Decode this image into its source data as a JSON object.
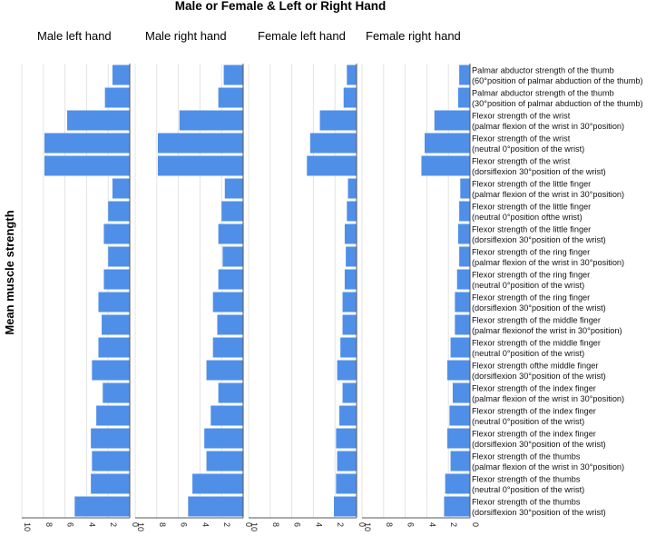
{
  "chart_data": {
    "type": "bar",
    "orientation": "horizontal",
    "title": "Male or Female & Left or Right Hand",
    "ylabel": "Mean muscle strength",
    "xlim": [
      0,
      10
    ],
    "x_ticks": [
      10,
      8,
      6,
      4,
      2,
      0
    ],
    "x_reversed": true,
    "grid": true,
    "bar_color": "#4f8fe8",
    "categories": [
      [
        "Palmar abductor strength of the thumb",
        "(60°position of palmar abduction of the thumb)"
      ],
      [
        "Palmar abductor strength of the thumb",
        "(30°position of palmar abduction of the thumb)"
      ],
      [
        "Flexor strength of the wrist",
        "(palmar flexion of the wrist in 30°position)"
      ],
      [
        "Flexor strength of the wrist",
        "(neutral 0°position of the wrist)"
      ],
      [
        "Flexor strength of the wrist",
        "(dorsiflexion 30°position of the wrist)"
      ],
      [
        "Flexor strength of the little finger",
        "(palmar flexion of the wrist in 30°position)"
      ],
      [
        "Flexor strength of the little finger",
        "(neutral 0°position ofthe wrist)"
      ],
      [
        "Flexor strength of the little finger",
        "(dorsiflexion 30°position of the wrist)"
      ],
      [
        "Flexor strength of the ring finger",
        "(palmar flexion of the wrist in 30°position)"
      ],
      [
        "Flexor strength of the ring finger",
        "(neutral 0°position of the wrist)"
      ],
      [
        "Flexor strength of the ring finger",
        "(dorsiflexion 30°position of the wrist)"
      ],
      [
        "Flexor strength of the middle finger",
        "(palmar flexionof the wrist in 30°position)"
      ],
      [
        "Flexor strength of the middle finger",
        "(neutral 0°position of the wrist)"
      ],
      [
        "Flexor strength ofthe middle finger",
        "(dorsiflexion 30°position of the wrist)"
      ],
      [
        "Flexor strength of the index finger",
        "(palmar flexion of the wrist in 30°position)"
      ],
      [
        "Flexor strength of the index finger",
        "(neutral 0°position of the wrist)"
      ],
      [
        "Flexor strength of the index finger",
        "(dorsiflexion 30°position of the wrist)"
      ],
      [
        "Flexor strength of the thumbs",
        "(palmar flexion of the wrist in 30°position)"
      ],
      [
        "Flexor strength of the thumbs",
        "(neutral 0°position of the wrist)"
      ],
      [
        "Flexor strength of the thumbs",
        "(dorsiflexion 30°position of the wrist)"
      ]
    ],
    "series": [
      {
        "name": "Male left hand",
        "values": [
          1.6,
          2.3,
          5.8,
          7.9,
          7.9,
          1.6,
          2.0,
          2.4,
          2.0,
          2.4,
          2.9,
          2.6,
          2.9,
          3.5,
          2.5,
          3.1,
          3.6,
          3.5,
          3.6,
          5.1
        ]
      },
      {
        "name": "Male right hand",
        "values": [
          1.8,
          2.3,
          5.9,
          7.9,
          7.9,
          1.7,
          2.0,
          2.3,
          1.9,
          2.3,
          2.8,
          2.4,
          2.8,
          3.4,
          2.3,
          3.0,
          3.6,
          3.4,
          4.7,
          5.1
        ]
      },
      {
        "name": "Female left hand",
        "values": [
          0.9,
          1.2,
          3.4,
          4.3,
          4.6,
          0.8,
          0.9,
          1.1,
          1.0,
          1.1,
          1.3,
          1.3,
          1.5,
          1.8,
          1.3,
          1.6,
          1.9,
          1.8,
          1.9,
          2.1
        ]
      },
      {
        "name": "Female right hand",
        "values": [
          1.0,
          1.1,
          3.3,
          4.2,
          4.5,
          0.9,
          1.0,
          1.1,
          1.0,
          1.2,
          1.4,
          1.4,
          1.8,
          2.1,
          1.6,
          1.9,
          2.1,
          1.8,
          2.3,
          2.4
        ]
      }
    ]
  }
}
